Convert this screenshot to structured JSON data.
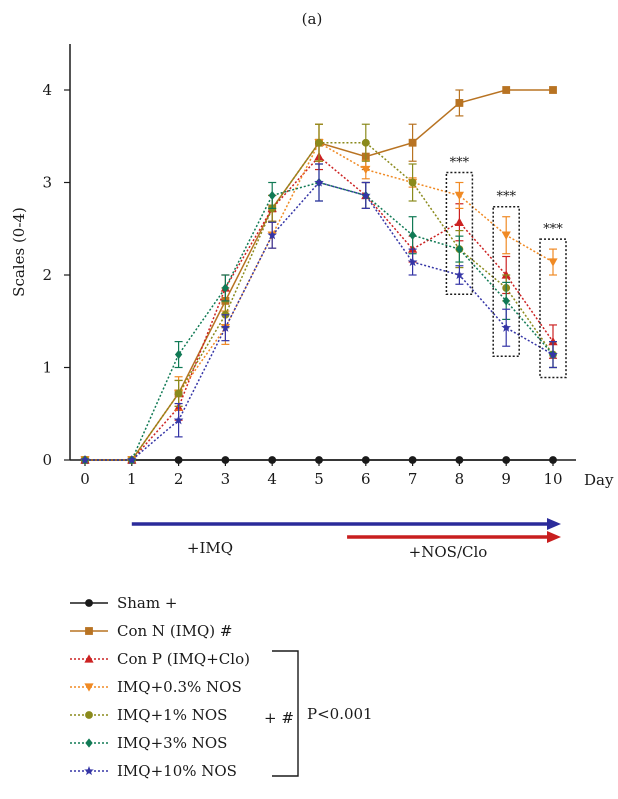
{
  "chart_data": {
    "type": "line",
    "panel_label": "(a)",
    "xlabel": "Day",
    "ylabel": "Scales (0-4)",
    "xlim": [
      0,
      10
    ],
    "ylim": [
      0,
      4
    ],
    "x_ticks": [
      0,
      1,
      2,
      3,
      4,
      5,
      6,
      7,
      8,
      9,
      10
    ],
    "y_ticks": [
      0,
      1,
      2,
      3,
      4
    ],
    "x": [
      0,
      1,
      2,
      3,
      4,
      5,
      6,
      7,
      8,
      9,
      10
    ],
    "series": [
      {
        "name": "Sham +",
        "color": "#1a1a1a",
        "marker": "circle",
        "dash": "solid",
        "values": [
          0,
          0,
          0,
          0,
          0,
          0,
          0,
          0,
          0,
          0,
          0
        ],
        "errors": [
          0,
          0,
          0,
          0,
          0,
          0,
          0,
          0,
          0,
          0,
          0
        ]
      },
      {
        "name": "Con N (IMQ) #",
        "color": "#b87322",
        "marker": "square",
        "dash": "solid",
        "values": [
          0,
          0,
          0.72,
          1.72,
          2.72,
          3.43,
          3.28,
          3.43,
          3.86,
          4.0,
          4.0
        ],
        "errors": [
          0,
          0,
          0.14,
          0.14,
          0.14,
          0.2,
          0.14,
          0.2,
          0.14,
          0,
          0
        ]
      },
      {
        "name": "Con P (IMQ+Clo)",
        "color": "#cc2222",
        "marker": "triangle-up",
        "dash": "dotted",
        "values": [
          0,
          0,
          0.57,
          1.86,
          2.72,
          3.28,
          2.86,
          2.28,
          2.57,
          2.0,
          1.28
        ],
        "errors": [
          0,
          0,
          0.14,
          0.14,
          0.14,
          0.14,
          0.14,
          0.14,
          0.2,
          0.2,
          0.18
        ]
      },
      {
        "name": "IMQ+0.3% NOS",
        "color": "#f08a24",
        "marker": "triangle-down",
        "dash": "dotted",
        "values": [
          0,
          0,
          0.72,
          1.43,
          2.43,
          3.43,
          3.14,
          3.0,
          2.86,
          2.43,
          2.14
        ],
        "errors": [
          0,
          0,
          0.18,
          0.18,
          0.14,
          0.2,
          0.1,
          0.05,
          0.14,
          0.2,
          0.14
        ]
      },
      {
        "name": "IMQ+1% NOS",
        "color": "#8a8a1c",
        "marker": "circle",
        "dash": "dotted",
        "values": [
          0,
          0,
          0.72,
          1.57,
          2.72,
          3.43,
          3.43,
          3.0,
          2.28,
          1.86,
          1.14
        ],
        "errors": [
          0,
          0,
          0.14,
          0.14,
          0.14,
          0.2,
          0.2,
          0.2,
          0.2,
          0.14,
          0.14
        ]
      },
      {
        "name": "IMQ+3% NOS",
        "color": "#117a55",
        "marker": "diamond",
        "dash": "dotted",
        "values": [
          0,
          0,
          1.14,
          1.86,
          2.86,
          3.0,
          2.86,
          2.43,
          2.28,
          1.72,
          1.14
        ],
        "errors": [
          0,
          0,
          0.14,
          0.14,
          0.14,
          0.2,
          0.14,
          0.2,
          0.14,
          0.2,
          0.14
        ]
      },
      {
        "name": "IMQ+10% NOS",
        "color": "#3535a6",
        "marker": "star",
        "dash": "dotted",
        "values": [
          0,
          0,
          0.43,
          1.43,
          2.43,
          3.0,
          2.86,
          2.14,
          2.0,
          1.43,
          1.14
        ],
        "errors": [
          0,
          0,
          0.18,
          0.14,
          0.14,
          0.2,
          0.14,
          0.14,
          0.1,
          0.2,
          0.14
        ]
      }
    ],
    "annotations": [
      {
        "text": "***",
        "x": 8
      },
      {
        "text": "***",
        "x": 9
      },
      {
        "text": "***",
        "x": 10
      }
    ],
    "treatment_arrows": [
      {
        "label": "+IMQ",
        "from_day": 1,
        "to_day": 10,
        "color": "#2b2b9a"
      },
      {
        "label": "+NOS/Clo",
        "from_day": 5.6,
        "to_day": 10,
        "color": "#c81e1e"
      }
    ],
    "legend": {
      "placement": "bottom",
      "group_label": "+ #",
      "group_stat": "P<0.001"
    }
  }
}
